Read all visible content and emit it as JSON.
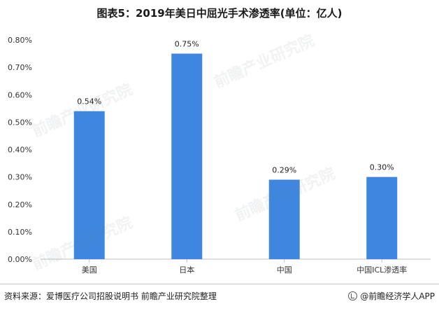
{
  "title": "图表5：2019年美日中屈光手术渗透率(单位：亿人)",
  "footer": {
    "source": "资料来源：爱博医疗公司招股说明书 前瞻产业研究院整理",
    "brand": "@前瞻经济学人APP"
  },
  "watermark_text": "前瞻产业研究院",
  "colors": {
    "bar": "#3E86E0",
    "axis": "#bfbfbf"
  },
  "chart_data": {
    "type": "bar",
    "title": "图表5：2019年美日中屈光手术渗透率(单位：亿人)",
    "xlabel": "",
    "ylabel": "",
    "categories": [
      "美国",
      "日本",
      "中国",
      "中国ICL渗透率"
    ],
    "values": [
      0.54,
      0.75,
      0.29,
      0.3
    ],
    "value_labels": [
      "0.54%",
      "0.75%",
      "0.29%",
      "0.30%"
    ],
    "yunit": "%",
    "ylim": [
      0,
      0.8
    ],
    "yticks": [
      "0.00%",
      "0.10%",
      "0.20%",
      "0.30%",
      "0.40%",
      "0.50%",
      "0.60%",
      "0.70%",
      "0.80%"
    ],
    "grid": false,
    "legend": "none"
  }
}
